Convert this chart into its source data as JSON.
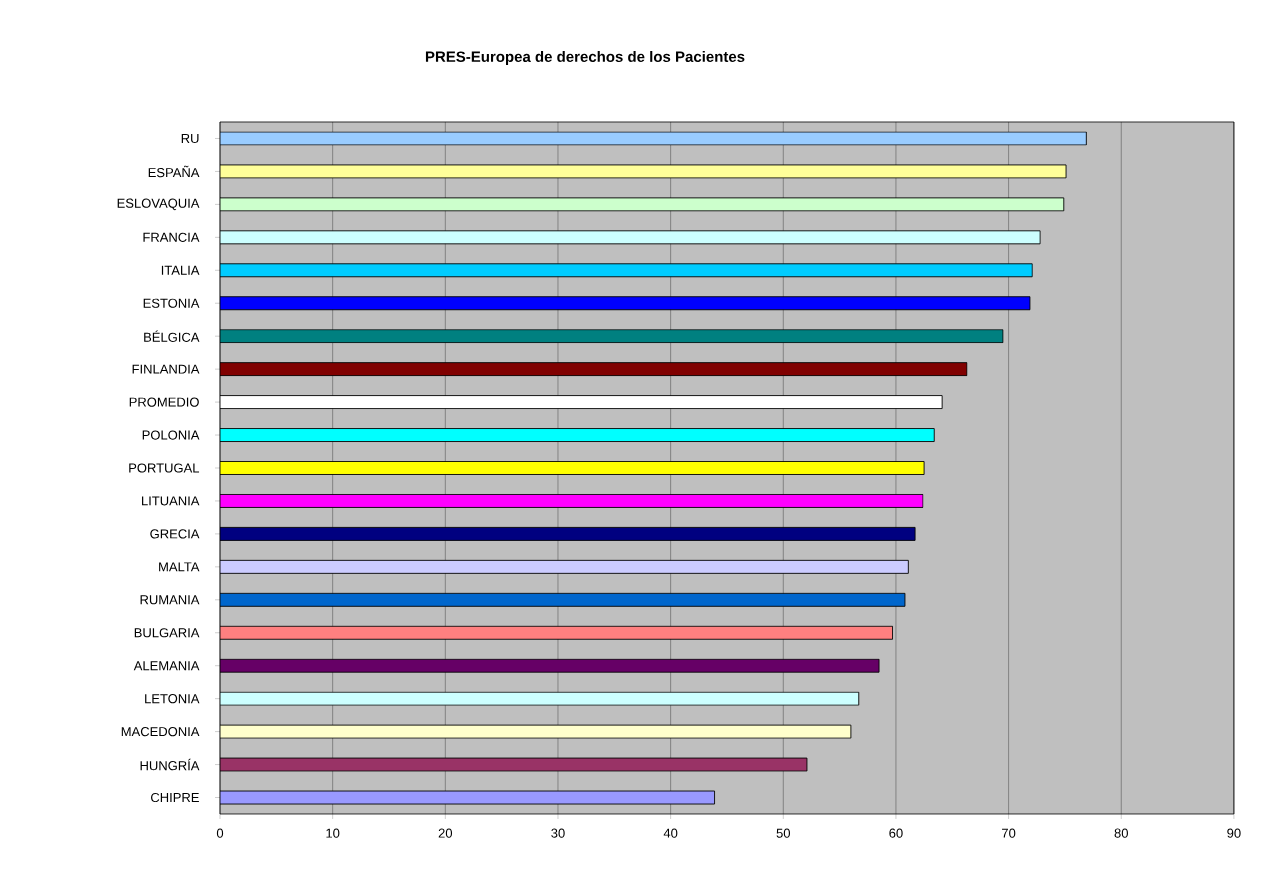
{
  "chart_data": {
    "type": "bar",
    "orientation": "horizontal",
    "title": "PRES-Europea de derechos de los Pacientes",
    "categories": [
      "RU",
      "ESPAÑA",
      "ESLOVAQUIA",
      "FRANCIA",
      "ITALIA",
      "ESTONIA",
      "BÉLGICA",
      "FINLANDIA",
      "PROMEDIO",
      "POLONIA",
      "PORTUGAL",
      "LITUANIA",
      "GRECIA",
      "MALTA",
      "RUMANIA",
      "BULGARIA",
      "ALEMANIA",
      "LETONIA",
      "MACEDONIA",
      "HUNGRÍA",
      "CHIPRE"
    ],
    "values": [
      76.9,
      75.1,
      74.9,
      72.8,
      72.1,
      71.9,
      69.5,
      66.3,
      64.1,
      63.4,
      62.5,
      62.4,
      61.7,
      61.1,
      60.8,
      59.7,
      58.5,
      56.7,
      56.0,
      52.1,
      43.9
    ],
    "colors": [
      "#99ccff",
      "#ffff99",
      "#ccffcc",
      "#ccffff",
      "#00ccff",
      "#0000ff",
      "#008080",
      "#800000",
      "#ffffff",
      "#00ffff",
      "#ffff00",
      "#ff00ff",
      "#000080",
      "#ccccff",
      "#0066cc",
      "#ff8080",
      "#660066",
      "#ccffff",
      "#ffffcc",
      "#993366",
      "#9999ff"
    ],
    "xlim": [
      0,
      90
    ],
    "xticks": [
      0,
      10,
      20,
      30,
      40,
      50,
      60,
      70,
      80,
      90
    ],
    "grid": "x"
  }
}
